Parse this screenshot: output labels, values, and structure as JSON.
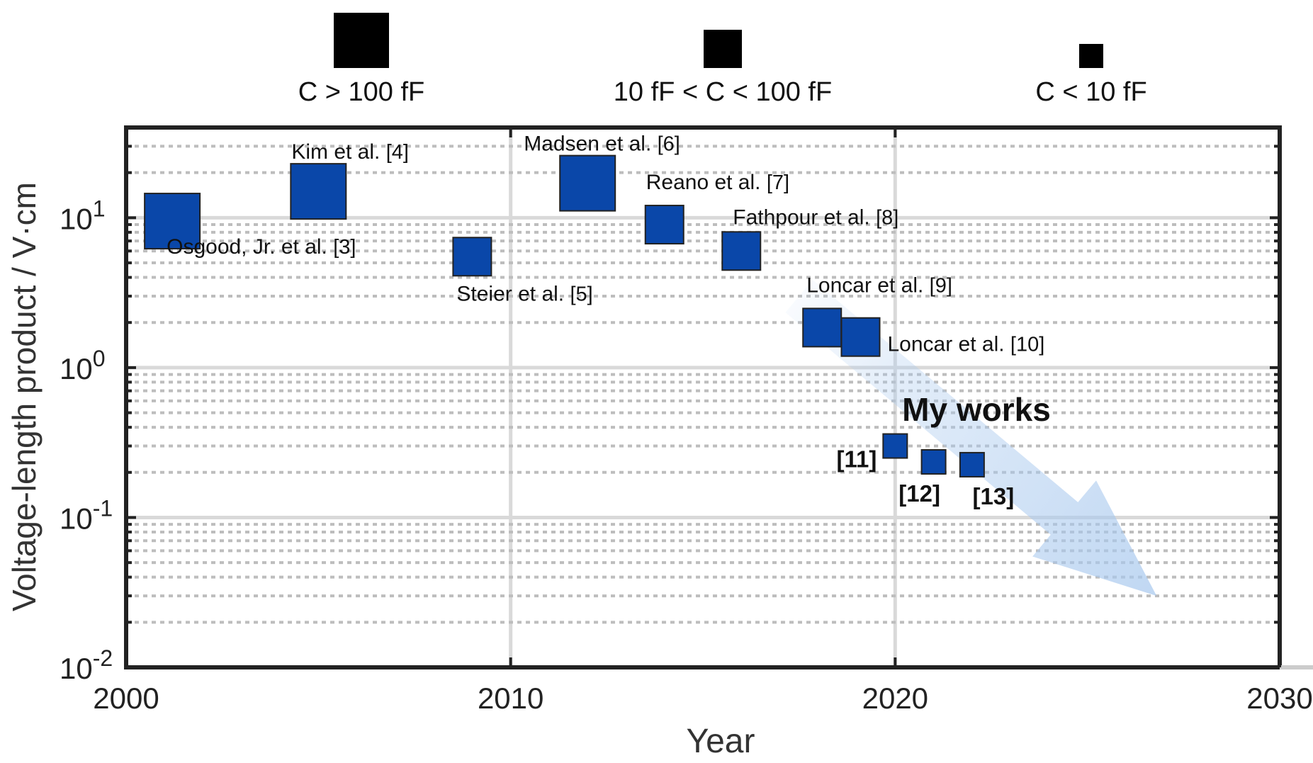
{
  "chart_data": {
    "type": "scatter",
    "title": "",
    "xlabel": "Year",
    "ylabel": "Voltage-length product / V·cm",
    "xlim": [
      2000,
      2030
    ],
    "ylim": [
      0.01,
      40
    ],
    "yscale": "log",
    "x_ticks": [
      "2000",
      "2010",
      "2020",
      "2030"
    ],
    "y_ticks": [
      {
        "base": "10",
        "exp": "-2",
        "value": 0.01
      },
      {
        "base": "10",
        "exp": "-1",
        "value": 0.1
      },
      {
        "base": "10",
        "exp": "0",
        "value": 1
      },
      {
        "base": "10",
        "exp": "1",
        "value": 10
      }
    ],
    "grid": true,
    "size_legend": [
      {
        "label": "C > 100 fF",
        "size": "large"
      },
      {
        "label": "10 fF < C < 100 fF",
        "size": "medium"
      },
      {
        "label": "C < 10 fF",
        "size": "small"
      }
    ],
    "points": [
      {
        "x": 2001.2,
        "y": 9.5,
        "size": "large",
        "label": "Osgood, Jr. et al.",
        "ref": "[3]",
        "color": "#0a47a9"
      },
      {
        "x": 2005.0,
        "y": 15.0,
        "size": "large",
        "label": "Kim et al.",
        "ref": "[4]",
        "color": "#0a47a9"
      },
      {
        "x": 2009.0,
        "y": 5.5,
        "size": "medium",
        "label": "Steier et al.",
        "ref": "[5]",
        "color": "#0a47a9"
      },
      {
        "x": 2012.0,
        "y": 17.0,
        "size": "large",
        "label": "Madsen et al.",
        "ref": "[6]",
        "color": "#0a47a9"
      },
      {
        "x": 2014.0,
        "y": 9.0,
        "size": "medium",
        "label": "Reano et al.",
        "ref": "[7]",
        "color": "#0a47a9"
      },
      {
        "x": 2016.0,
        "y": 6.0,
        "size": "medium",
        "label": "Fathpour et al.",
        "ref": "[8]",
        "color": "#0a47a9"
      },
      {
        "x": 2018.1,
        "y": 1.85,
        "size": "medium",
        "label": "Loncar et al.",
        "ref": "[9]",
        "color": "#0a47a9"
      },
      {
        "x": 2019.1,
        "y": 1.6,
        "size": "medium",
        "label": "Loncar et al.",
        "ref": "[10]",
        "color": "#0a47a9"
      },
      {
        "x": 2020.0,
        "y": 0.3,
        "size": "small",
        "label": "",
        "ref": "[11]",
        "color": "#0a47a9"
      },
      {
        "x": 2021.0,
        "y": 0.235,
        "size": "small",
        "label": "",
        "ref": "[12]",
        "color": "#0a47a9"
      },
      {
        "x": 2022.0,
        "y": 0.225,
        "size": "small",
        "label": "",
        "ref": "[13]",
        "color": "#0a47a9"
      }
    ],
    "annotations": [
      {
        "text": "My works",
        "style": "bold"
      }
    ],
    "trend_arrow": {
      "from": [
        2017.5,
        3.0
      ],
      "to": [
        2026.8,
        0.03
      ],
      "color": "#a9c9ee"
    },
    "marker_color": "#0a47a9",
    "marker_edge_color": "#222222"
  }
}
